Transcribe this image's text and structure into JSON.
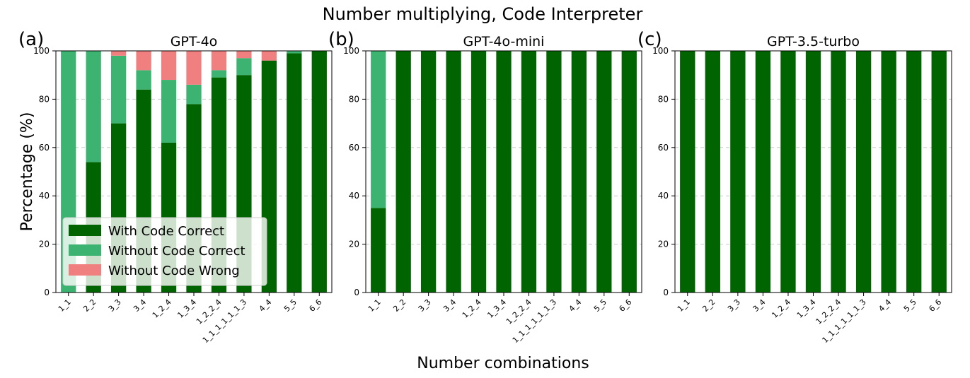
{
  "figure": {
    "title": "Number multiplying, Code Interpreter",
    "xlabel": "Number combinations",
    "ylabel": "Percentage (%)"
  },
  "colors": {
    "with_code_correct": "#006400",
    "without_code_correct": "#3cb371",
    "without_code_wrong": "#f08080",
    "gridline": "#cccccc"
  },
  "chart_data": [
    {
      "type": "bar",
      "stacked": true,
      "panel_label": "(a)",
      "title": "GPT-4o",
      "categories": [
        "1_1",
        "2_2",
        "3_3",
        "3_4",
        "1_2_4",
        "1_3_4",
        "1_2_2_4",
        "1_1_1_1_1_1_3",
        "4_4",
        "5_5",
        "6_6"
      ],
      "series": [
        {
          "name": "With Code Correct",
          "values": [
            0,
            54,
            70,
            84,
            62,
            78,
            89,
            90,
            96,
            99,
            100
          ]
        },
        {
          "name": "Without Code Correct",
          "values": [
            100,
            46,
            28,
            8,
            26,
            8,
            3,
            7,
            0,
            1,
            0
          ]
        },
        {
          "name": "Without Code Wrong",
          "values": [
            0,
            0,
            2,
            8,
            12,
            14,
            8,
            3,
            4,
            0,
            0
          ]
        }
      ],
      "ylim": [
        0,
        100
      ],
      "yticks": [
        0,
        20,
        40,
        60,
        80,
        100
      ],
      "grid": "y-dashed",
      "legend": "lower-left"
    },
    {
      "type": "bar",
      "stacked": true,
      "panel_label": "(b)",
      "title": "GPT-4o-mini",
      "categories": [
        "1_1",
        "2_2",
        "3_3",
        "3_4",
        "1_2_4",
        "1_3_4",
        "1_2_2_4",
        "1_1_1_1_1_1_3",
        "4_4",
        "5_5",
        "6_6"
      ],
      "series": [
        {
          "name": "With Code Correct",
          "values": [
            35,
            100,
            100,
            100,
            100,
            100,
            100,
            100,
            100,
            100,
            100
          ]
        },
        {
          "name": "Without Code Correct",
          "values": [
            65,
            0,
            0,
            0,
            0,
            0,
            0,
            0,
            0,
            0,
            0
          ]
        },
        {
          "name": "Without Code Wrong",
          "values": [
            0,
            0,
            0,
            0,
            0,
            0,
            0,
            0,
            0,
            0,
            0
          ]
        }
      ],
      "ylim": [
        0,
        100
      ],
      "yticks": [
        0,
        20,
        40,
        60,
        80,
        100
      ],
      "grid": "y-dashed"
    },
    {
      "type": "bar",
      "stacked": true,
      "panel_label": "(c)",
      "title": "GPT-3.5-turbo",
      "categories": [
        "1_1",
        "2_2",
        "3_3",
        "3_4",
        "1_2_4",
        "1_3_4",
        "1_2_2_4",
        "1_1_1_1_1_1_3",
        "4_4",
        "5_5",
        "6_6"
      ],
      "series": [
        {
          "name": "With Code Correct",
          "values": [
            100,
            100,
            100,
            100,
            100,
            100,
            100,
            100,
            100,
            100,
            100
          ]
        },
        {
          "name": "Without Code Correct",
          "values": [
            0,
            0,
            0,
            0,
            0,
            0,
            0,
            0,
            0,
            0,
            0
          ]
        },
        {
          "name": "Without Code Wrong",
          "values": [
            0,
            0,
            0,
            0,
            0,
            0,
            0,
            0,
            0,
            0,
            0
          ]
        }
      ],
      "ylim": [
        0,
        100
      ],
      "yticks": [
        0,
        20,
        40,
        60,
        80,
        100
      ],
      "grid": "y-dashed"
    }
  ]
}
